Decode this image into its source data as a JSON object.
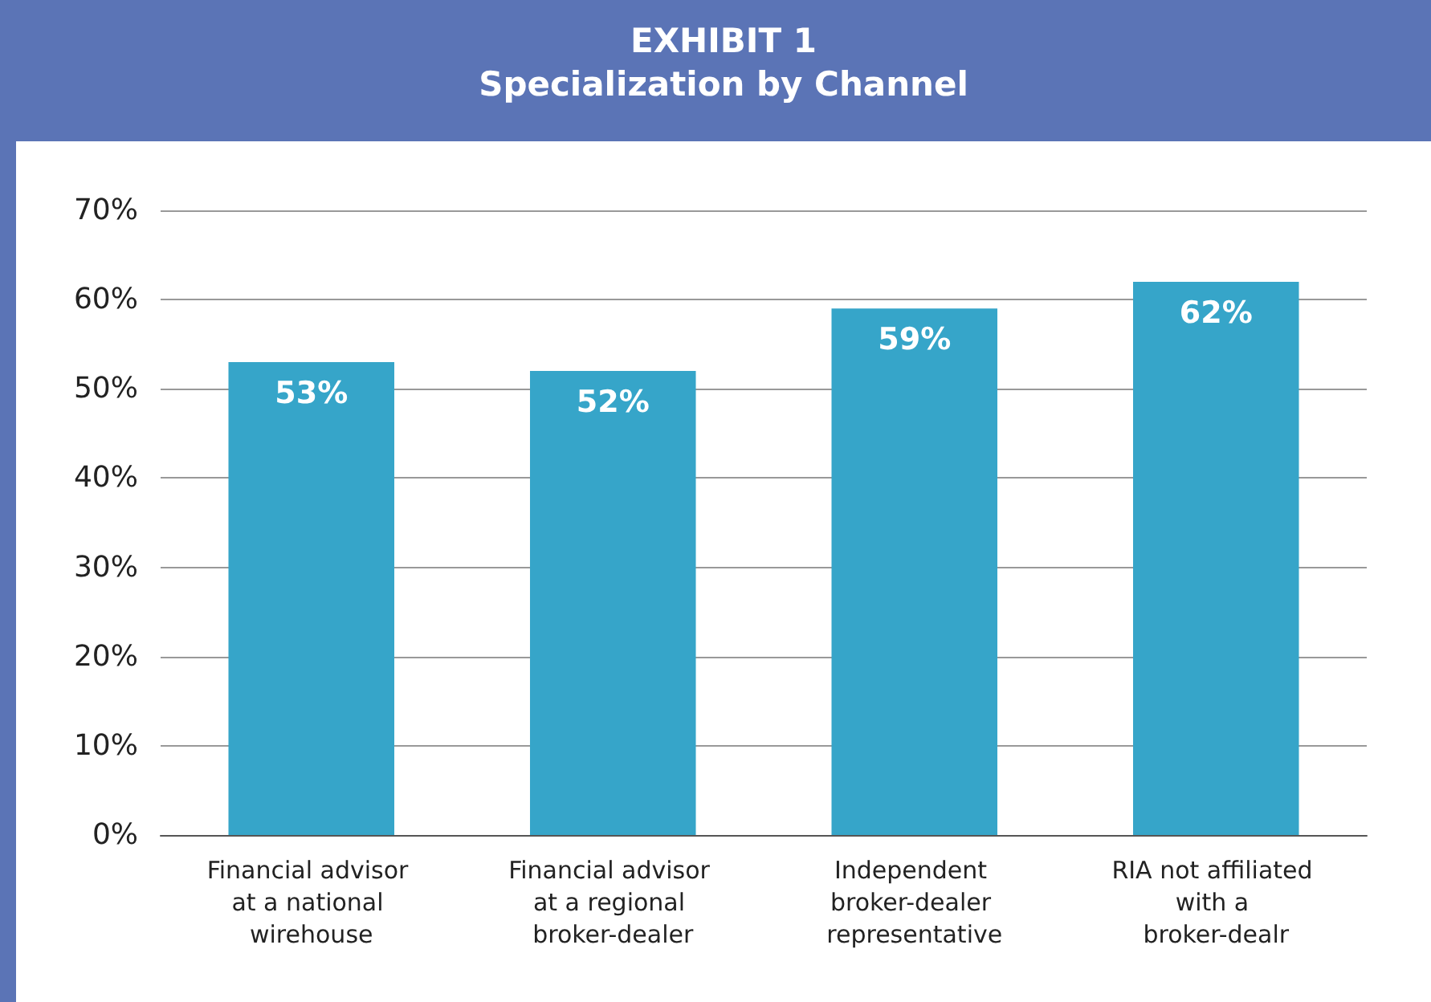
{
  "chart_data": {
    "type": "bar",
    "title": "EXHIBIT 1",
    "subtitle": "Specialization by Channel",
    "categories": [
      "Financial advisor at a national wirehouse",
      "Financial advisor at a regional broker-dealer",
      "Independent broker-dealer representative",
      "RIA not affiliated with a broker-dealr"
    ],
    "values": [
      53,
      52,
      59,
      62
    ],
    "color": "#36a5c9",
    "value_labels": [
      "53%",
      "52%",
      "59%",
      "62%"
    ],
    "ylim": [
      0,
      70
    ],
    "yticks": [
      {
        "value": 0,
        "label": "0%"
      },
      {
        "value": 10,
        "label": "10%"
      },
      {
        "value": 20,
        "label": "20%"
      },
      {
        "value": 30,
        "label": "30%"
      },
      {
        "value": 40,
        "label": "40%"
      },
      {
        "value": 50,
        "label": "50%"
      },
      {
        "value": 60,
        "label": "60%"
      },
      {
        "value": 70,
        "label": "70%"
      }
    ],
    "grid": "y"
  }
}
